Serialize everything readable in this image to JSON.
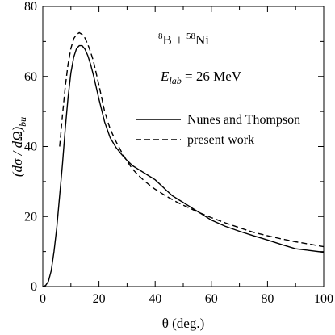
{
  "chart_data": {
    "type": "line",
    "xlabel": "θ (deg.)",
    "ylabel": {
      "main": "(dσ / dΩ)",
      "subscript": "bu"
    },
    "xlim": [
      0,
      100
    ],
    "ylim": [
      0,
      80
    ],
    "xticks": [
      0,
      20,
      40,
      60,
      80,
      100
    ],
    "yticks": [
      0,
      20,
      40,
      60,
      80
    ],
    "xtick_labels": [
      "0",
      "20",
      "40",
      "60",
      "80",
      "100"
    ],
    "ytick_labels": [
      "0",
      "20",
      "40",
      "60",
      "80"
    ],
    "annotations": {
      "reaction": {
        "sup1": "8",
        "part1": "B + ",
        "sup2": "58",
        "part2": "Ni"
      },
      "energy": {
        "symbol": "E",
        "subscript": "lab",
        "value": " = 26 MeV"
      }
    },
    "legend_position": "center-right",
    "series": [
      {
        "name": "Nunes and Thompson",
        "style": "solid",
        "x": [
          0,
          1,
          2,
          3,
          4,
          5,
          6,
          7,
          8,
          9,
          10,
          11,
          12,
          13,
          14,
          15,
          16,
          17,
          18,
          20,
          22,
          24,
          26,
          28,
          30,
          32,
          34,
          36,
          38,
          40,
          42,
          44,
          46,
          48,
          50,
          52,
          54,
          56,
          58,
          60,
          65,
          70,
          75,
          80,
          85,
          90,
          95,
          100
        ],
        "y": [
          0,
          0.3,
          1.5,
          4.5,
          10,
          17,
          26,
          35,
          45,
          54,
          61,
          65.5,
          68,
          68.8,
          68.8,
          67.8,
          66,
          63.5,
          60.5,
          53.5,
          47,
          42.5,
          39.8,
          37.8,
          36,
          34.5,
          33.5,
          32.5,
          31.5,
          30.5,
          29,
          27.5,
          26,
          25,
          24,
          23,
          22,
          21,
          20,
          19,
          17.2,
          15.8,
          14.5,
          13.3,
          12,
          10.8,
          10.3,
          9.8
        ]
      },
      {
        "name": "present work",
        "style": "dashed",
        "x": [
          6,
          7,
          8,
          9,
          10,
          11,
          12,
          13,
          14,
          15,
          16,
          17,
          18,
          20,
          22,
          24,
          26,
          28,
          30,
          32,
          34,
          36,
          38,
          40,
          44,
          48,
          52,
          56,
          60,
          65,
          70,
          75,
          80,
          85,
          90,
          95,
          100
        ],
        "y": [
          40,
          49,
          57,
          63.5,
          68,
          70.8,
          72,
          72.5,
          72,
          71,
          69.2,
          67,
          64.5,
          57.5,
          50,
          45,
          41.5,
          38.5,
          35.8,
          33.5,
          31.8,
          30.3,
          29,
          27.8,
          25.8,
          24,
          22.5,
          21,
          19.7,
          18.2,
          16.8,
          15.5,
          14.5,
          13.6,
          12.8,
          12.1,
          11.4
        ]
      }
    ]
  }
}
